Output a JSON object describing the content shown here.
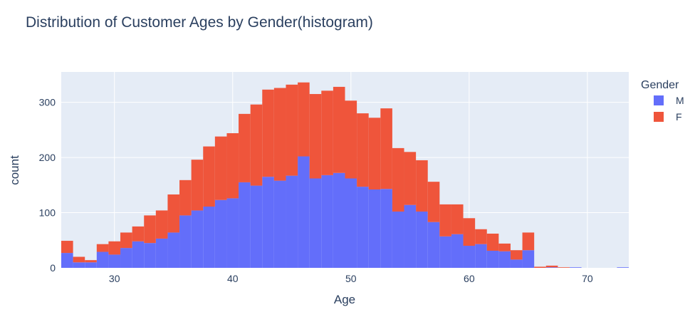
{
  "chart_data": {
    "type": "bar",
    "mode": "stacked-histogram",
    "title": "Distribution of Customer Ages by Gender(histogram)",
    "xlabel": "Age",
    "ylabel": "count",
    "xlim": [
      25.5,
      73.5
    ],
    "ylim": [
      0,
      355
    ],
    "xticks": [
      30,
      40,
      50,
      60,
      70
    ],
    "yticks": [
      0,
      100,
      200,
      300
    ],
    "grid": true,
    "legend": {
      "title": "Gender",
      "position": "right"
    },
    "colors": {
      "M": "#636efa",
      "F": "#ef553b",
      "plot_bg": "#e5ecf6"
    },
    "bin_start": 26,
    "x": [
      26,
      27,
      28,
      29,
      30,
      31,
      32,
      33,
      34,
      35,
      36,
      37,
      38,
      39,
      40,
      41,
      42,
      43,
      44,
      45,
      46,
      47,
      48,
      49,
      50,
      51,
      52,
      53,
      54,
      55,
      56,
      57,
      58,
      59,
      60,
      61,
      62,
      63,
      64,
      65,
      66,
      67,
      68,
      69,
      70,
      71,
      72,
      73
    ],
    "series": [
      {
        "name": "M",
        "values": [
          27,
          10,
          10,
          29,
          24,
          36,
          48,
          45,
          53,
          64,
          95,
          104,
          111,
          123,
          126,
          155,
          149,
          165,
          158,
          167,
          202,
          162,
          168,
          172,
          162,
          147,
          142,
          143,
          102,
          114,
          102,
          83,
          57,
          61,
          40,
          43,
          31,
          30,
          15,
          32,
          0,
          1,
          0,
          1,
          0,
          0,
          0,
          1
        ]
      },
      {
        "name": "F",
        "values": [
          22,
          10,
          4,
          14,
          24,
          28,
          27,
          50,
          51,
          69,
          64,
          92,
          109,
          115,
          118,
          124,
          147,
          158,
          168,
          165,
          134,
          153,
          153,
          156,
          141,
          133,
          130,
          146,
          115,
          96,
          93,
          73,
          58,
          54,
          50,
          27,
          31,
          14,
          17,
          32,
          2,
          3,
          1,
          0,
          0,
          0,
          0,
          0
        ]
      }
    ]
  }
}
